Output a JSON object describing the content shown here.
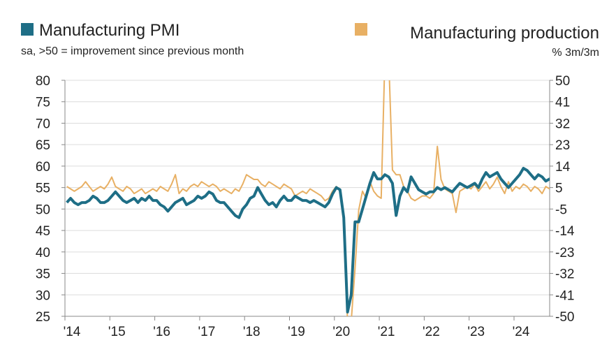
{
  "chart_data": {
    "type": "line",
    "legend_placement": "top",
    "grid": true,
    "left_axis": {
      "label": "sa, >50 = improvement since previous month",
      "ylim": [
        25,
        80
      ],
      "ticks": [
        "80",
        "75",
        "70",
        "65",
        "60",
        "55",
        "50",
        "45",
        "40",
        "35",
        "30",
        "25"
      ]
    },
    "right_axis": {
      "label": "% 3m/3m",
      "ylim": [
        -50,
        50
      ],
      "ticks": [
        "50",
        "41",
        "32",
        "23",
        "14",
        "5",
        "-5",
        "-14",
        "-23",
        "-32",
        "-41",
        "-50"
      ]
    },
    "x_ticks": [
      "'14",
      "'15",
      "'16",
      "'17",
      "'18",
      "'19",
      "'20",
      "'21",
      "'22",
      "'23",
      "'24"
    ],
    "x_start": "2014-01",
    "series": [
      {
        "name": "Manufacturing PMI",
        "axis": "left",
        "color": "#1e6e86",
        "values": [
          51.5,
          52.5,
          51.5,
          51,
          51.5,
          51.5,
          52,
          53,
          52.5,
          51.5,
          51.5,
          52,
          53,
          54,
          53,
          52,
          51.5,
          52,
          52.5,
          51.5,
          52.5,
          52,
          53,
          52,
          52,
          51,
          50.5,
          49.5,
          50.5,
          51.5,
          52,
          52.5,
          51,
          51.5,
          52,
          53,
          52.5,
          53,
          54,
          53.5,
          52,
          51.5,
          51.5,
          50.5,
          49.5,
          48.5,
          48,
          50,
          51,
          52.5,
          53,
          55,
          53.5,
          52,
          51,
          51.5,
          50.5,
          52,
          53,
          52,
          52,
          53,
          52.5,
          52,
          52,
          51.5,
          52,
          51.5,
          51,
          50.5,
          51.5,
          53.5,
          55,
          54.5,
          48,
          26,
          30,
          47,
          47,
          50,
          53,
          56,
          58.5,
          57,
          57,
          58,
          57.5,
          56,
          48.5,
          53,
          55,
          54,
          57.5,
          56,
          54.5,
          54,
          53.5,
          54,
          54,
          55,
          54.5,
          55,
          54.5,
          54,
          55,
          56,
          55.5,
          55,
          55.5,
          56,
          55,
          57,
          58.5,
          57.5,
          58,
          58.5,
          57,
          56,
          55,
          56,
          57,
          58,
          59.5,
          59,
          58,
          57,
          58,
          57.5,
          56.5,
          57,
          56.5,
          56
        ]
      },
      {
        "name": "Manufacturing production",
        "axis": "right",
        "color": "#e8b064",
        "values": [
          5,
          4,
          3,
          4,
          5,
          7,
          5,
          3,
          4,
          5,
          4,
          6,
          9,
          5,
          4,
          3,
          5,
          4,
          2,
          3,
          4,
          2,
          3,
          4,
          3,
          5,
          4,
          3,
          6,
          10,
          2,
          4,
          3,
          5,
          6,
          5,
          7,
          6,
          5,
          6,
          5,
          3,
          4,
          3,
          2,
          4,
          3,
          6,
          10,
          9,
          8,
          8,
          6,
          5,
          7,
          6,
          5,
          4,
          6,
          5,
          4,
          1,
          2,
          3,
          2,
          4,
          3,
          2,
          1,
          -1,
          0,
          3,
          5,
          3,
          -10,
          -52,
          -52,
          -30,
          -5,
          3,
          0,
          7,
          3,
          1,
          0,
          60,
          60,
          12,
          10,
          10,
          5,
          3,
          0,
          -1,
          0,
          1,
          1,
          0,
          2,
          22,
          8,
          4,
          3,
          2,
          -6,
          3,
          4,
          5,
          4,
          6,
          3,
          5,
          7,
          4,
          6,
          9,
          5,
          2,
          7,
          3,
          5,
          4,
          6,
          5,
          3,
          5,
          4,
          2,
          5,
          4
        ]
      }
    ]
  }
}
